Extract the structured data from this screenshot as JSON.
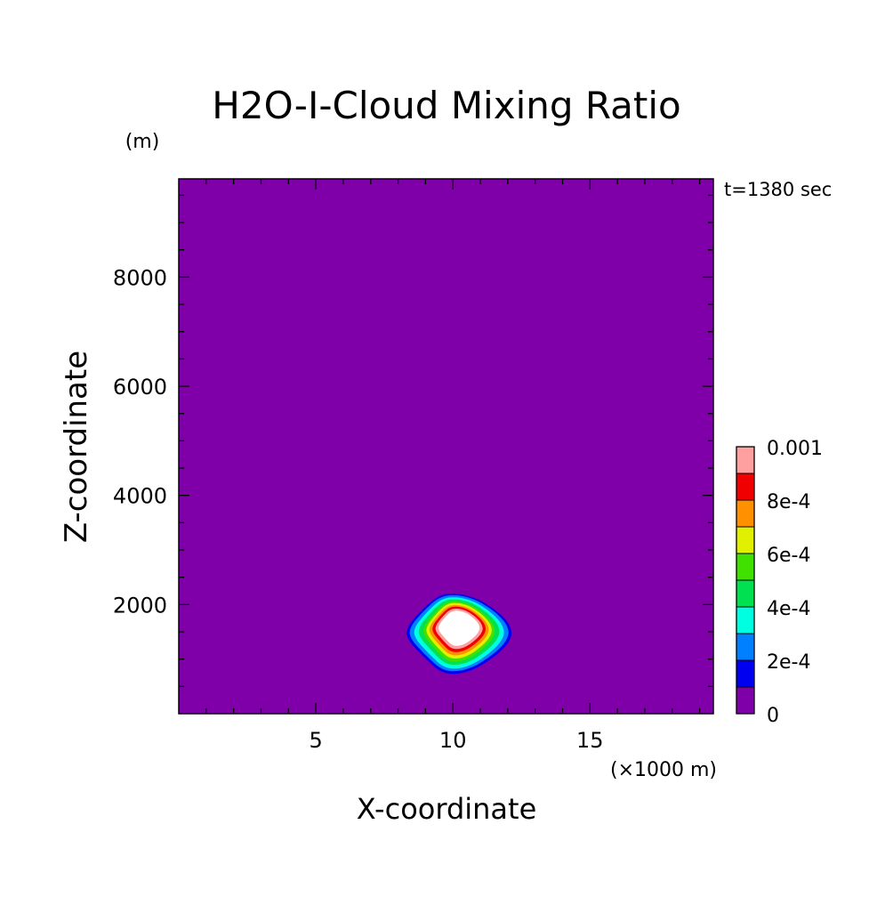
{
  "chart_data": {
    "type": "heatmap",
    "title": "H2O-I-Cloud Mixing Ratio",
    "time_label": "t=1380 sec",
    "xlabel": "X-coordinate",
    "ylabel": "Z-coordinate",
    "x_unit": "(×1000 m)",
    "y_unit": "(m)",
    "xlim": [
      0,
      19.5
    ],
    "ylim": [
      0,
      9800
    ],
    "x_major_ticks": [
      5,
      10,
      15
    ],
    "x_tick_labels": [
      "5",
      "10",
      "15"
    ],
    "y_major_ticks": [
      2000,
      4000,
      6000,
      8000
    ],
    "y_tick_labels": [
      "2000",
      "4000",
      "6000",
      "8000"
    ],
    "background_color": "#7f00a8",
    "colorbar": {
      "levels": [
        0,
        0.0001,
        0.0002,
        0.0003,
        0.0004,
        0.0005,
        0.0006,
        0.0007,
        0.0008,
        0.0009,
        0.001
      ],
      "colors": [
        "#7f00a8",
        "#0000f0",
        "#0080ff",
        "#00ffe0",
        "#00e050",
        "#40e000",
        "#e0f000",
        "#ff9000",
        "#f00000",
        "#ffa0a0"
      ],
      "tick_values": [
        0,
        0.0002,
        0.0004,
        0.0006,
        0.0008,
        0.001
      ],
      "tick_labels": [
        "0",
        "2e-4",
        "4e-4",
        "6e-4",
        "8e-4",
        "0.001"
      ]
    },
    "cloud": {
      "center_x": 10.2,
      "center_z": 1450,
      "max_value": 0.0012,
      "contours": [
        {
          "level": 0.0001,
          "color": "#0000f0",
          "x_range": [
            8.5,
            11.95
          ],
          "z_range": [
            700,
            2230
          ]
        },
        {
          "level": 0.0002,
          "color": "#0080ff",
          "x_range": [
            8.6,
            11.85
          ],
          "z_range": [
            750,
            2200
          ]
        },
        {
          "level": 0.0003,
          "color": "#00ffe0",
          "x_range": [
            8.75,
            11.7
          ],
          "z_range": [
            800,
            2160
          ]
        },
        {
          "level": 0.0004,
          "color": "#00e050",
          "x_range": [
            8.9,
            11.55
          ],
          "z_range": [
            870,
            2120
          ]
        },
        {
          "level": 0.0005,
          "color": "#40e000",
          "x_range": [
            9.05,
            11.4
          ],
          "z_range": [
            930,
            2080
          ]
        },
        {
          "level": 0.0006,
          "color": "#e0f000",
          "x_range": [
            9.15,
            11.3
          ],
          "z_range": [
            990,
            2050
          ]
        },
        {
          "level": 0.0007,
          "color": "#ff9000",
          "x_range": [
            9.25,
            11.2
          ],
          "z_range": [
            1050,
            2010
          ]
        },
        {
          "level": 0.0008,
          "color": "#f00000",
          "x_range": [
            9.35,
            11.1
          ],
          "z_range": [
            1110,
            1980
          ]
        },
        {
          "level": 0.0009,
          "color": "#ffa0a0",
          "x_range": [
            9.45,
            11.0
          ],
          "z_range": [
            1170,
            1940
          ]
        },
        {
          "level": 0.001,
          "color": "#ffffff",
          "x_range": [
            9.55,
            10.9
          ],
          "z_range": [
            1230,
            1900
          ]
        }
      ]
    }
  }
}
